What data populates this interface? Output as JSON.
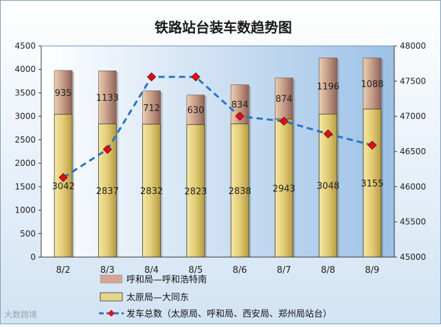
{
  "chart_data": {
    "type": "bar",
    "title": "铁路站台装车数趋势图",
    "categories": [
      "8/2",
      "8/3",
      "8/4",
      "8/5",
      "8/6",
      "8/7",
      "8/8",
      "8/9"
    ],
    "series": [
      {
        "name": "太原局—大同东",
        "kind": "bar-stack-bottom",
        "axis": "left",
        "color": "#e7d58c",
        "values": [
          3042,
          2837,
          2832,
          2823,
          2838,
          2943,
          3048,
          3155
        ]
      },
      {
        "name": "呼和局—呼和浩特南",
        "kind": "bar-stack-top",
        "axis": "left",
        "color": "#d5a494",
        "values": [
          935,
          1133,
          712,
          630,
          834,
          874,
          1196,
          1088
        ]
      },
      {
        "name": "发车总数（太原局、呼和局、西安局、郑州局站台）",
        "kind": "line",
        "axis": "right",
        "color": "#2a73c2",
        "marker_color": "#d9101a",
        "values": [
          46130,
          46530,
          47560,
          47560,
          47000,
          46930,
          46750,
          46590
        ]
      }
    ],
    "y_left": {
      "min": 0,
      "max": 4500,
      "step": 500,
      "ticks": [
        "0",
        "500",
        "1000",
        "1500",
        "2000",
        "2500",
        "3000",
        "3500",
        "4000",
        "4500"
      ]
    },
    "y_right": {
      "min": 45000,
      "max": 48000,
      "step": 500,
      "ticks": [
        "45000",
        "45500",
        "46000",
        "46500",
        "47000",
        "47500",
        "48000"
      ]
    },
    "grid": false,
    "legend_position": "bottom-left"
  },
  "watermark": "大数跨境"
}
